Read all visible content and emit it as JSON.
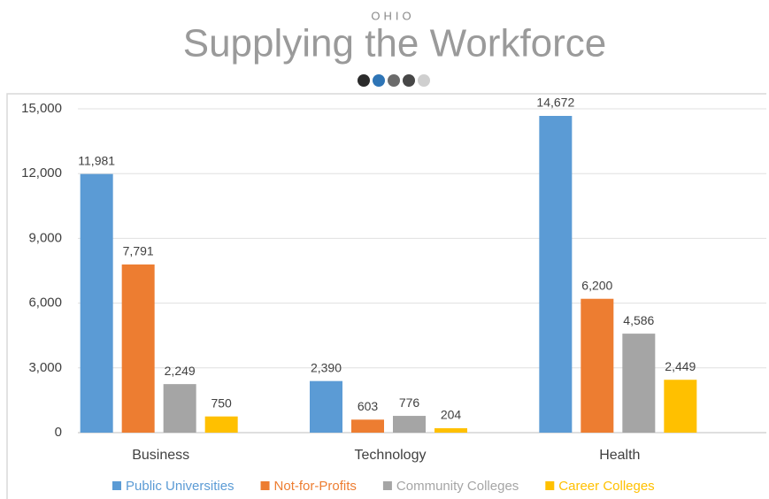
{
  "chart_data": {
    "type": "bar",
    "supertitle": "OHIO",
    "title": "Supplying the Workforce",
    "categories": [
      "Business",
      "Technology",
      "Health"
    ],
    "series": [
      {
        "name": "Public Universities",
        "color": "#5b9bd5",
        "values": [
          11981,
          2390,
          14672
        ],
        "value_labels": [
          "11,981",
          "2,390",
          "14,672"
        ]
      },
      {
        "name": "Not-for-Profits",
        "color": "#ed7d31",
        "values": [
          7791,
          603,
          6200
        ],
        "value_labels": [
          "7,791",
          "603",
          "6,200"
        ]
      },
      {
        "name": "Community Colleges",
        "color": "#a5a5a5",
        "values": [
          2249,
          776,
          4586
        ],
        "value_labels": [
          "2,249",
          "776",
          "4,586"
        ]
      },
      {
        "name": "Career Colleges",
        "color": "#ffc000",
        "values": [
          750,
          204,
          2449
        ],
        "value_labels": [
          "750",
          "204",
          "2,449"
        ]
      }
    ],
    "ylim": [
      0,
      15000
    ],
    "yticks": [
      {
        "value": 0,
        "label": "0"
      },
      {
        "value": 3000,
        "label": "3,000"
      },
      {
        "value": 6000,
        "label": "6,000"
      },
      {
        "value": 9000,
        "label": "9,000"
      },
      {
        "value": 12000,
        "label": "12,000"
      },
      {
        "value": 15000,
        "label": "15,000"
      }
    ],
    "grid": true
  }
}
